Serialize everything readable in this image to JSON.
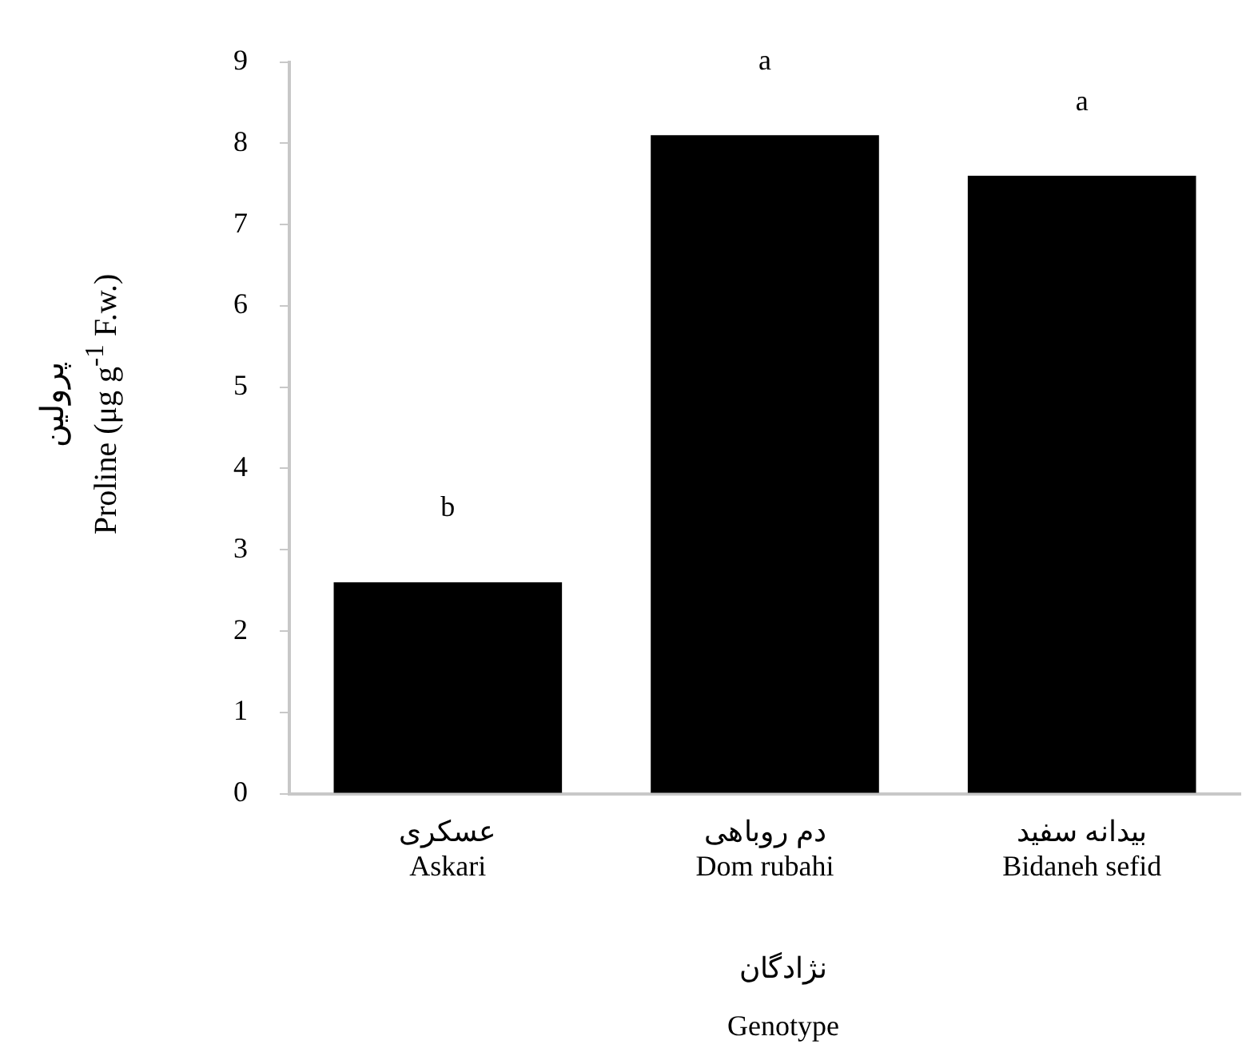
{
  "chart_data": {
    "type": "bar",
    "categories": [
      "عسکری\nAskari",
      "دم روباهی\nDom rubahi",
      "بیدانه سفید\nBidaneh sefid"
    ],
    "values": [
      2.6,
      8.1,
      7.6
    ],
    "color": "#000000",
    "ylim": [
      0,
      9
    ],
    "yticks": [
      0,
      1,
      2,
      3,
      4,
      5,
      6,
      7,
      8,
      9
    ],
    "grid": false,
    "legend": false,
    "xlabel": "نژادگان\nGenotype",
    "ylabel": "پرولین\nProline (μg g$^{-1}$ F.w.)",
    "annotations": [
      "b",
      "a",
      "a"
    ]
  }
}
